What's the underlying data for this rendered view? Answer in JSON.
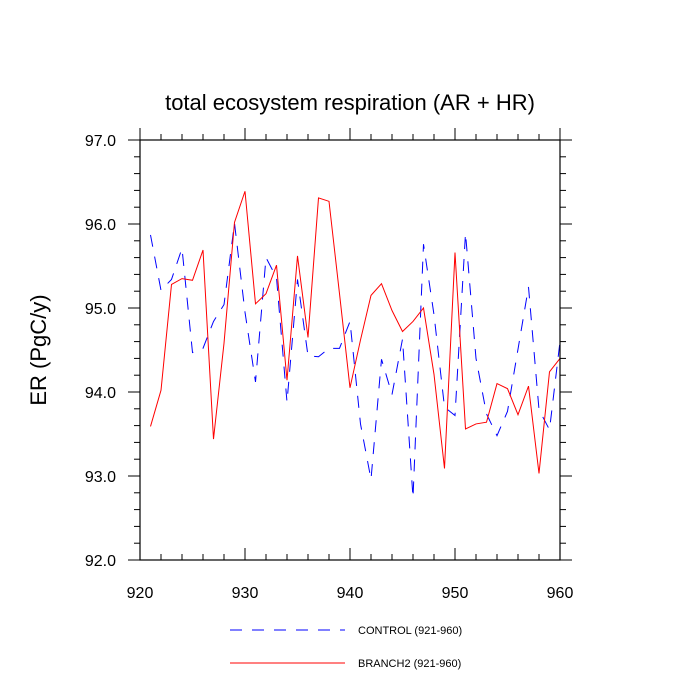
{
  "chart_data": {
    "type": "line",
    "title": "total ecosystem respiration (AR + HR)",
    "xlabel": "",
    "ylabel": "ER  (PgC/y)",
    "xlim": [
      920,
      960
    ],
    "ylim": [
      92.0,
      97.0
    ],
    "x_ticks": [
      920,
      930,
      940,
      950,
      960
    ],
    "x_tick_labels": [
      "920",
      "930",
      "940",
      "950",
      "960"
    ],
    "y_ticks": [
      92.0,
      93.0,
      94.0,
      95.0,
      96.0,
      97.0
    ],
    "y_tick_labels": [
      "92.0",
      "93.0",
      "94.0",
      "95.0",
      "96.0",
      "97.0"
    ],
    "x": [
      921,
      922,
      923,
      924,
      925,
      926,
      927,
      928,
      929,
      930,
      931,
      932,
      933,
      934,
      935,
      936,
      937,
      938,
      939,
      940,
      941,
      942,
      943,
      944,
      945,
      946,
      947,
      948,
      949,
      950,
      951,
      952,
      953,
      954,
      955,
      956,
      957,
      958,
      959,
      960
    ],
    "series": [
      {
        "name": "CONTROL (921-960)",
        "color": "#0000ff",
        "style": "dashed",
        "values": [
          95.87,
          95.21,
          95.34,
          95.71,
          94.47,
          94.52,
          94.84,
          95.04,
          96.01,
          94.95,
          94.12,
          95.6,
          95.36,
          93.88,
          95.34,
          94.43,
          94.42,
          94.52,
          94.52,
          94.84,
          93.62,
          92.96,
          94.39,
          93.97,
          94.63,
          92.74,
          95.76,
          94.92,
          93.82,
          93.72,
          95.89,
          94.4,
          93.74,
          93.48,
          93.77,
          94.51,
          95.25,
          93.79,
          93.55,
          94.6
        ]
      },
      {
        "name": "BRANCH2 (921-960)",
        "color": "#ff0000",
        "style": "solid",
        "values": [
          93.59,
          94.02,
          95.28,
          95.35,
          95.33,
          95.69,
          93.44,
          94.58,
          96.02,
          96.39,
          95.05,
          95.17,
          95.51,
          94.14,
          95.62,
          94.65,
          96.31,
          96.27,
          95.17,
          94.05,
          94.62,
          95.15,
          95.29,
          94.97,
          94.72,
          94.84,
          95.0,
          94.21,
          93.09,
          95.66,
          93.56,
          93.62,
          93.64,
          94.1,
          94.04,
          93.73,
          94.07,
          93.03,
          94.24,
          94.4
        ]
      }
    ],
    "legend": "bottom-center"
  }
}
